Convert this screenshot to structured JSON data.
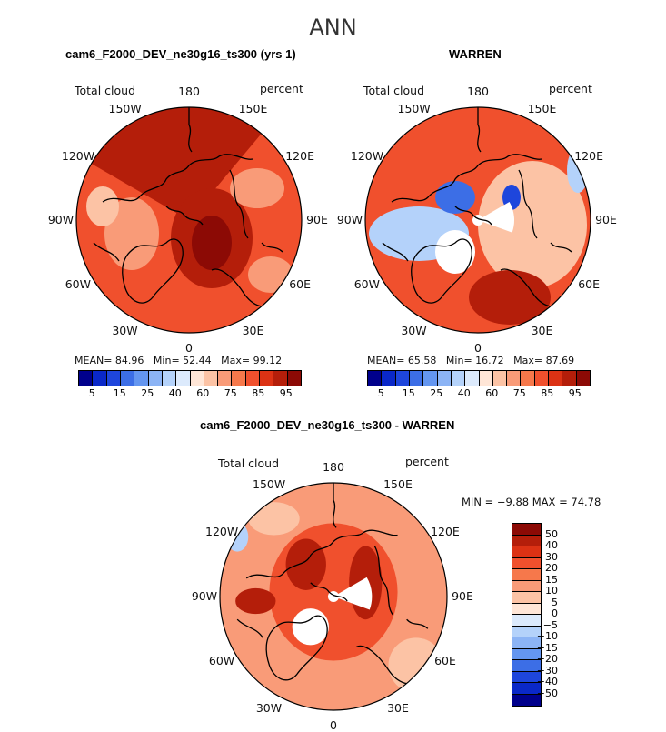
{
  "suptitle": "ANN",
  "panels": [
    {
      "title": "cam6_F2000_DEV_ne30g16_ts300 (yrs 1)",
      "left_label": "Total cloud",
      "right_label": "percent",
      "stats": {
        "mean_label": "MEAN=",
        "mean": "84.96",
        "min_label": "Min=",
        "min": "52.44",
        "max_label": "Max=",
        "max": "99.12"
      }
    },
    {
      "title": "WARREN",
      "left_label": "Total cloud",
      "right_label": "percent",
      "stats": {
        "mean_label": "MEAN=",
        "mean": "65.58",
        "min_label": "Min=",
        "min": "16.72",
        "max_label": "Max=",
        "max": "87.69"
      }
    },
    {
      "title": "cam6_F2000_DEV_ne30g16_ts300 - WARREN",
      "left_label": "Total cloud",
      "right_label": "percent",
      "stats_text": "MIN =   −9.88  MAX =   74.78"
    }
  ],
  "lon_labels": [
    "180",
    "150E",
    "120E",
    "90E",
    "60E",
    "30E",
    "0",
    "30W",
    "60W",
    "90W",
    "120W",
    "150W"
  ],
  "colorbar_top": {
    "ticks": [
      "5",
      "15",
      "25",
      "40",
      "60",
      "75",
      "85",
      "95"
    ],
    "colors": [
      "#00008c",
      "#0a28c8",
      "#1e46dc",
      "#3c6ee6",
      "#6496f0",
      "#8cb4f5",
      "#b4d2fa",
      "#dceafc",
      "#ffe6d7",
      "#fcc3a5",
      "#f99b78",
      "#f6784b",
      "#f0502d",
      "#dc3214",
      "#b41e0a",
      "#8c0a05"
    ]
  },
  "colorbar_diff": {
    "ticks": [
      "50",
      "40",
      "30",
      "20",
      "15",
      "10",
      "5",
      "0",
      "−5",
      "−10",
      "−15",
      "−20",
      "−30",
      "−40",
      "−50"
    ],
    "colors": [
      "#8c0a05",
      "#b41e0a",
      "#dc3214",
      "#f0502d",
      "#f6784b",
      "#f99b78",
      "#fcc3a5",
      "#ffe6d7",
      "#dceafc",
      "#b4d2fa",
      "#8cb4f5",
      "#6496f0",
      "#3c6ee6",
      "#1e46dc",
      "#0a28c8",
      "#00008c"
    ]
  },
  "colors": {
    "land": "#000000",
    "missing": "#ffffff",
    "red_dark": "#b41e0a",
    "red_mid": "#f0502d",
    "red_light": "#f99b78",
    "peach": "#fcc3a5",
    "pale_blue": "#b4d2fa",
    "blue": "#3c6ee6"
  }
}
